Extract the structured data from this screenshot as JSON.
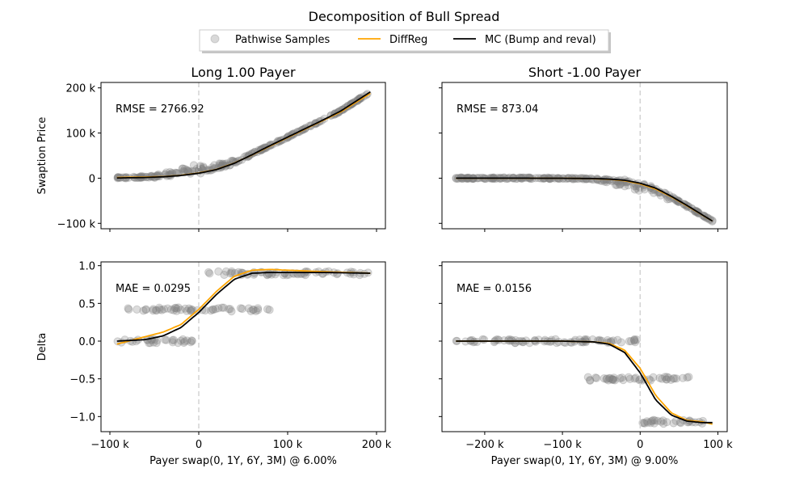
{
  "chart_data": {
    "type": "scatter",
    "suptitle": "Decomposition of Bull Spread",
    "legend": {
      "placement": "top-center",
      "entries": [
        "Pathwise Samples",
        "DiffReg",
        "MC (Bump and reval)"
      ]
    },
    "colors": {
      "samples": "#808080",
      "diffreg": "#FFA500",
      "mc": "#000000",
      "strike_line": "#d3d3d3"
    },
    "columns": [
      {
        "title": "Long 1.00 Payer",
        "xlabel": "Payer swap(0, 1Y, 6Y, 3M) @ 6.00%",
        "xlim": [
          -110000,
          210000
        ],
        "xticks": [
          -100000,
          0,
          100000,
          200000
        ],
        "xtick_labels": [
          "−100 k",
          "0",
          "100 k",
          "200 k"
        ],
        "strike_x": 0,
        "x_range": [
          -92000,
          193000
        ],
        "price": {
          "ylabel": "Swaption Price",
          "annotation": "RMSE = 2766.92",
          "ylim": [
            -112000,
            212000
          ],
          "yticks": [
            -100000,
            0,
            100000,
            200000
          ],
          "ytick_labels": [
            "−100 k",
            "0",
            "100 k",
            "200 k"
          ],
          "mc_curve": {
            "x": [
              -92000,
              -60000,
              -40000,
              -20000,
              0,
              20000,
              40000,
              60000,
              80000,
              100000,
              120000,
              140000,
              160000,
              193000
            ],
            "y": [
              500,
              1500,
              3000,
              6000,
              11000,
              19000,
              33000,
              52000,
              72000,
              91000,
              110000,
              129000,
              149000,
              191000
            ]
          },
          "diffreg_curve": {
            "x": [
              -92000,
              -60000,
              -40000,
              -20000,
              0,
              20000,
              40000,
              60000,
              80000,
              100000,
              120000,
              140000,
              160000,
              193000
            ],
            "y": [
              1500,
              2500,
              3500,
              6500,
              11500,
              19500,
              33500,
              51500,
              71000,
              90000,
              109000,
              128000,
              147000,
              188000
            ]
          }
        },
        "delta": {
          "ylabel": "Delta",
          "annotation": "MAE = 0.0295",
          "ylim": [
            -1.2,
            1.05
          ],
          "yticks": [
            -1.0,
            -0.5,
            0.0,
            0.5,
            1.0
          ],
          "ytick_labels": [
            "−1.0",
            "−0.5",
            "0.0",
            "0.5",
            "1.0"
          ],
          "sample_bands": [
            {
              "y": 0.0,
              "x_from": -92000,
              "x_to": 0
            },
            {
              "y": 0.42,
              "x_from": -80000,
              "x_to": 82000
            },
            {
              "y": 0.9,
              "x_from": 5000,
              "x_to": 193000
            }
          ],
          "mc_curve": {
            "x": [
              -92000,
              -60000,
              -40000,
              -20000,
              0,
              20000,
              40000,
              60000,
              80000,
              100000,
              140000,
              193000
            ],
            "y": [
              0.0,
              0.02,
              0.07,
              0.18,
              0.38,
              0.62,
              0.82,
              0.9,
              0.91,
              0.91,
              0.91,
              0.9
            ]
          },
          "diffreg_curve": {
            "x": [
              -92000,
              -60000,
              -40000,
              -20000,
              0,
              20000,
              40000,
              60000,
              80000,
              100000,
              140000,
              193000
            ],
            "y": [
              -0.04,
              0.06,
              0.12,
              0.22,
              0.42,
              0.66,
              0.86,
              0.94,
              0.95,
              0.94,
              0.92,
              0.9
            ]
          }
        }
      },
      {
        "title": "Short -1.00 Payer",
        "xlabel": "Payer swap(0, 1Y, 6Y, 3M) @ 9.00%",
        "xlim": [
          -255000,
          112000
        ],
        "xticks": [
          -200000,
          -100000,
          0,
          100000
        ],
        "xtick_labels": [
          "−200 k",
          "−100 k",
          "0",
          "100 k"
        ],
        "strike_x": 0,
        "x_range": [
          -237000,
          93000
        ],
        "price": {
          "annotation": "RMSE = 873.04",
          "ylim": [
            -112000,
            212000
          ],
          "yticks": [
            -100000,
            0,
            100000,
            200000
          ],
          "mc_curve": {
            "x": [
              -237000,
              -150000,
              -100000,
              -60000,
              -40000,
              -20000,
              0,
              20000,
              40000,
              60000,
              93000
            ],
            "y": [
              0,
              0,
              -200,
              -800,
              -2000,
              -4500,
              -11000,
              -22000,
              -40000,
              -60000,
              -95000
            ]
          },
          "diffreg_curve": {
            "x": [
              -237000,
              -150000,
              -100000,
              -60000,
              -40000,
              -20000,
              0,
              20000,
              40000,
              60000,
              93000
            ],
            "y": [
              0,
              0,
              -300,
              -1000,
              -2500,
              -5500,
              -12500,
              -24000,
              -41000,
              -61000,
              -95000
            ]
          }
        },
        "delta": {
          "annotation": "MAE = 0.0156",
          "ylim": [
            -1.2,
            1.05
          ],
          "yticks": [
            -1.0,
            -0.5,
            0.0,
            0.5,
            1.0
          ],
          "sample_bands": [
            {
              "y": 0.0,
              "x_from": -237000,
              "x_to": 0
            },
            {
              "y": -0.5,
              "x_from": -70000,
              "x_to": 65000
            },
            {
              "y": -1.07,
              "x_from": 2000,
              "x_to": 93000
            }
          ],
          "mc_curve": {
            "x": [
              -237000,
              -150000,
              -100000,
              -60000,
              -40000,
              -20000,
              0,
              20000,
              40000,
              60000,
              80000,
              93000
            ],
            "y": [
              0.0,
              0.0,
              0.0,
              -0.01,
              -0.04,
              -0.15,
              -0.42,
              -0.78,
              -0.98,
              -1.06,
              -1.08,
              -1.08
            ]
          },
          "diffreg_curve": {
            "x": [
              -237000,
              -150000,
              -100000,
              -60000,
              -40000,
              -20000,
              0,
              20000,
              40000,
              60000,
              80000,
              93000
            ],
            "y": [
              0.0,
              0.0,
              0.0,
              -0.01,
              -0.03,
              -0.12,
              -0.36,
              -0.72,
              -0.95,
              -1.05,
              -1.07,
              -1.1
            ]
          }
        }
      }
    ]
  }
}
